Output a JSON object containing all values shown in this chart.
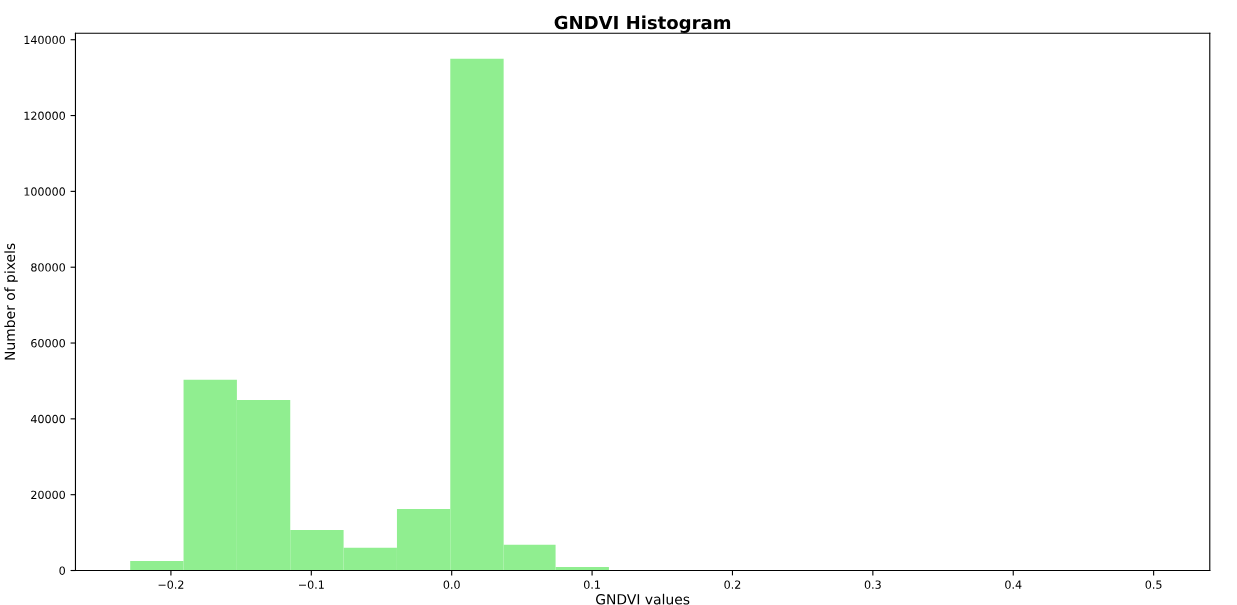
{
  "chart_data": {
    "type": "histogram",
    "title": "GNDVI Histogram",
    "xlabel": "GNDVI values",
    "ylabel": "Number of pixels",
    "bins": [
      -0.229,
      -0.191,
      -0.153,
      -0.115,
      -0.077,
      -0.039,
      -0.001,
      0.037,
      0.074,
      0.112
    ],
    "values": [
      2500,
      50300,
      45000,
      10700,
      6000,
      16200,
      135000,
      6800,
      900
    ],
    "color": "#90ee90",
    "xlim": [
      -0.268,
      0.54
    ],
    "xticks": [
      {
        "value": -0.2,
        "label": "−0.2"
      },
      {
        "value": -0.1,
        "label": "−0.1"
      },
      {
        "value": 0,
        "label": "0.0"
      },
      0.1,
      0.2,
      0.3,
      0.4,
      0.5
    ],
    "ylim": [
      0,
      141700
    ],
    "yticks": [
      0,
      20000,
      40000,
      60000,
      80000,
      100000,
      120000,
      140000
    ],
    "grid": false
  }
}
